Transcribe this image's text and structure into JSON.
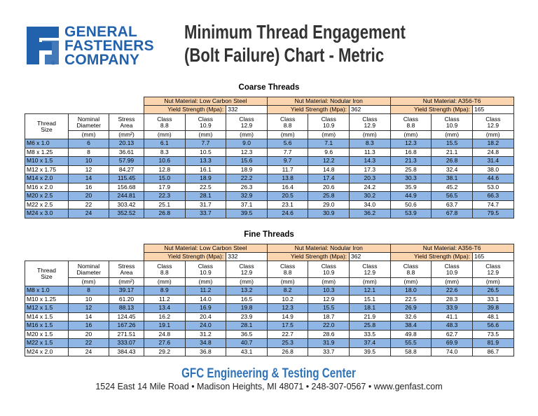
{
  "header": {
    "logo": [
      "GENERAL",
      "FASTENERS",
      "COMPANY"
    ],
    "registered": "®",
    "title": [
      "Minimum Thread Engagement",
      "(Bolt Failure) Chart - Metric"
    ]
  },
  "tables": [
    {
      "title": "Coarse Threads",
      "materials": [
        {
          "name": "Nut Material: Low Carbon Steel",
          "yield_label": "Yield Strength (Mpa):",
          "yield_value": "332"
        },
        {
          "name": "Nut Material: Nodular Iron",
          "yield_label": "Yield Strength (Mpa):",
          "yield_value": "362"
        },
        {
          "name": "Nut Material: A356-T6",
          "yield_label": "Yield Strength (Mpa):",
          "yield_value": "165"
        }
      ],
      "columns": [
        "Thread Size",
        "Nominal Diameter",
        "Stress Area",
        "Class 8.8",
        "Class 10.9",
        "Class 12.9",
        "Class 8.8",
        "Class 10.9",
        "Class 12.9",
        "Class 8.8",
        "Class 10.9",
        "Class 12.9"
      ],
      "units": [
        "(mm)",
        "(mm²)",
        "(mm)",
        "(mm)",
        "(mm)",
        "(mm)",
        "(mm)",
        "(mm)",
        "(mm)",
        "(mm)",
        "(mm)"
      ],
      "rows": [
        [
          "M6 x 1.0",
          "6",
          "20.13",
          "6.1",
          "7.7",
          "9.0",
          "5.6",
          "7.1",
          "8.3",
          "12.3",
          "15.5",
          "18.2"
        ],
        [
          "M8 x 1.25",
          "8",
          "36.61",
          "8.3",
          "10.5",
          "12.3",
          "7.7",
          "9.6",
          "11.3",
          "16.8",
          "21.1",
          "24.8"
        ],
        [
          "M10 x 1.5",
          "10",
          "57.99",
          "10.6",
          "13.3",
          "15.6",
          "9.7",
          "12.2",
          "14.3",
          "21.3",
          "26.8",
          "31.4"
        ],
        [
          "M12 x 1.75",
          "12",
          "84.27",
          "12.8",
          "16.1",
          "18.9",
          "11.7",
          "14.8",
          "17.3",
          "25.8",
          "32.4",
          "38.0"
        ],
        [
          "M14 x 2.0",
          "14",
          "115.45",
          "15.0",
          "18.9",
          "22.2",
          "13.8",
          "17.4",
          "20.3",
          "30.3",
          "38.1",
          "44.6"
        ],
        [
          "M16 x 2.0",
          "16",
          "156.68",
          "17.9",
          "22.5",
          "26.3",
          "16.4",
          "20.6",
          "24.2",
          "35.9",
          "45.2",
          "53.0"
        ],
        [
          "M20 x 2.5",
          "20",
          "244.81",
          "22.3",
          "28.1",
          "32.9",
          "20.5",
          "25.8",
          "30.2",
          "44.9",
          "56.5",
          "66.3"
        ],
        [
          "M22 x 2.5",
          "22",
          "303.42",
          "25.1",
          "31.7",
          "37.1",
          "23.1",
          "29.0",
          "34.0",
          "50.6",
          "63.7",
          "74.7"
        ],
        [
          "M24 x 3.0",
          "24",
          "352.52",
          "26.8",
          "33.7",
          "39.5",
          "24.6",
          "30.9",
          "36.2",
          "53.9",
          "67.8",
          "79.5"
        ]
      ]
    },
    {
      "title": "Fine Threads",
      "materials": [
        {
          "name": "Nut Material: Low Carbon Steel",
          "yield_label": "Yield Strength (Mpa):",
          "yield_value": "332"
        },
        {
          "name": "Nut Material: Nodular Iron",
          "yield_label": "Yield Strength (Mpa):",
          "yield_value": "362"
        },
        {
          "name": "Nut Material: A356-T6",
          "yield_label": "Yield Strength (Mpa):",
          "yield_value": "165"
        }
      ],
      "columns": [
        "Thread Size",
        "Nominal Diameter",
        "Stress Area",
        "Class 8.8",
        "Class 10.9",
        "Class 12.9",
        "Class 8.8",
        "Class 10.9",
        "Class 12.9",
        "Class 8.8",
        "Class 10.9",
        "Class 12.9"
      ],
      "units": [
        "(mm)",
        "(mm²)",
        "(mm)",
        "(mm)",
        "(mm)",
        "(mm)",
        "(mm)",
        "(mm)",
        "(mm)",
        "(mm)",
        "(mm)"
      ],
      "rows": [
        [
          "M8 x 1.0",
          "8",
          "39.17",
          "8.9",
          "11.2",
          "13.2",
          "8.2",
          "10.3",
          "12.1",
          "18.0",
          "22.6",
          "26.5"
        ],
        [
          "M10 x 1.25",
          "10",
          "61.20",
          "11.2",
          "14.0",
          "16.5",
          "10.2",
          "12.9",
          "15.1",
          "22.5",
          "28.3",
          "33.1"
        ],
        [
          "M12 x 1.5",
          "12",
          "88.13",
          "13.4",
          "16.9",
          "19.8",
          "12.3",
          "15.5",
          "18.1",
          "26.9",
          "33.9",
          "39.8"
        ],
        [
          "M14 x 1.5",
          "14",
          "124.45",
          "16.2",
          "20.4",
          "23.9",
          "14.9",
          "18.7",
          "21.9",
          "32.6",
          "41.1",
          "48.1"
        ],
        [
          "M16 x 1.5",
          "16",
          "167.26",
          "19.1",
          "24.0",
          "28.1",
          "17.5",
          "22.0",
          "25.8",
          "38.4",
          "48.3",
          "56.6"
        ],
        [
          "M20 x 1.5",
          "20",
          "271.51",
          "24.8",
          "31.2",
          "36.5",
          "22.7",
          "28.6",
          "33.5",
          "49.8",
          "62.7",
          "73.5"
        ],
        [
          "M22 x 1.5",
          "22",
          "333.07",
          "27.6",
          "34.8",
          "40.7",
          "25.3",
          "31.9",
          "37.4",
          "55.5",
          "69.9",
          "81.9"
        ],
        [
          "M24 x 2.0",
          "24",
          "384.43",
          "29.2",
          "36.8",
          "43.1",
          "26.8",
          "33.7",
          "39.5",
          "58.8",
          "74.0",
          "86.7"
        ]
      ]
    }
  ],
  "footer": {
    "center": "GFC Engineering & Testing Center",
    "address": "1524 East 14 Mile Road • Madison Heights, MI 48071 • 248-307-0567 • www.genfast.com"
  }
}
